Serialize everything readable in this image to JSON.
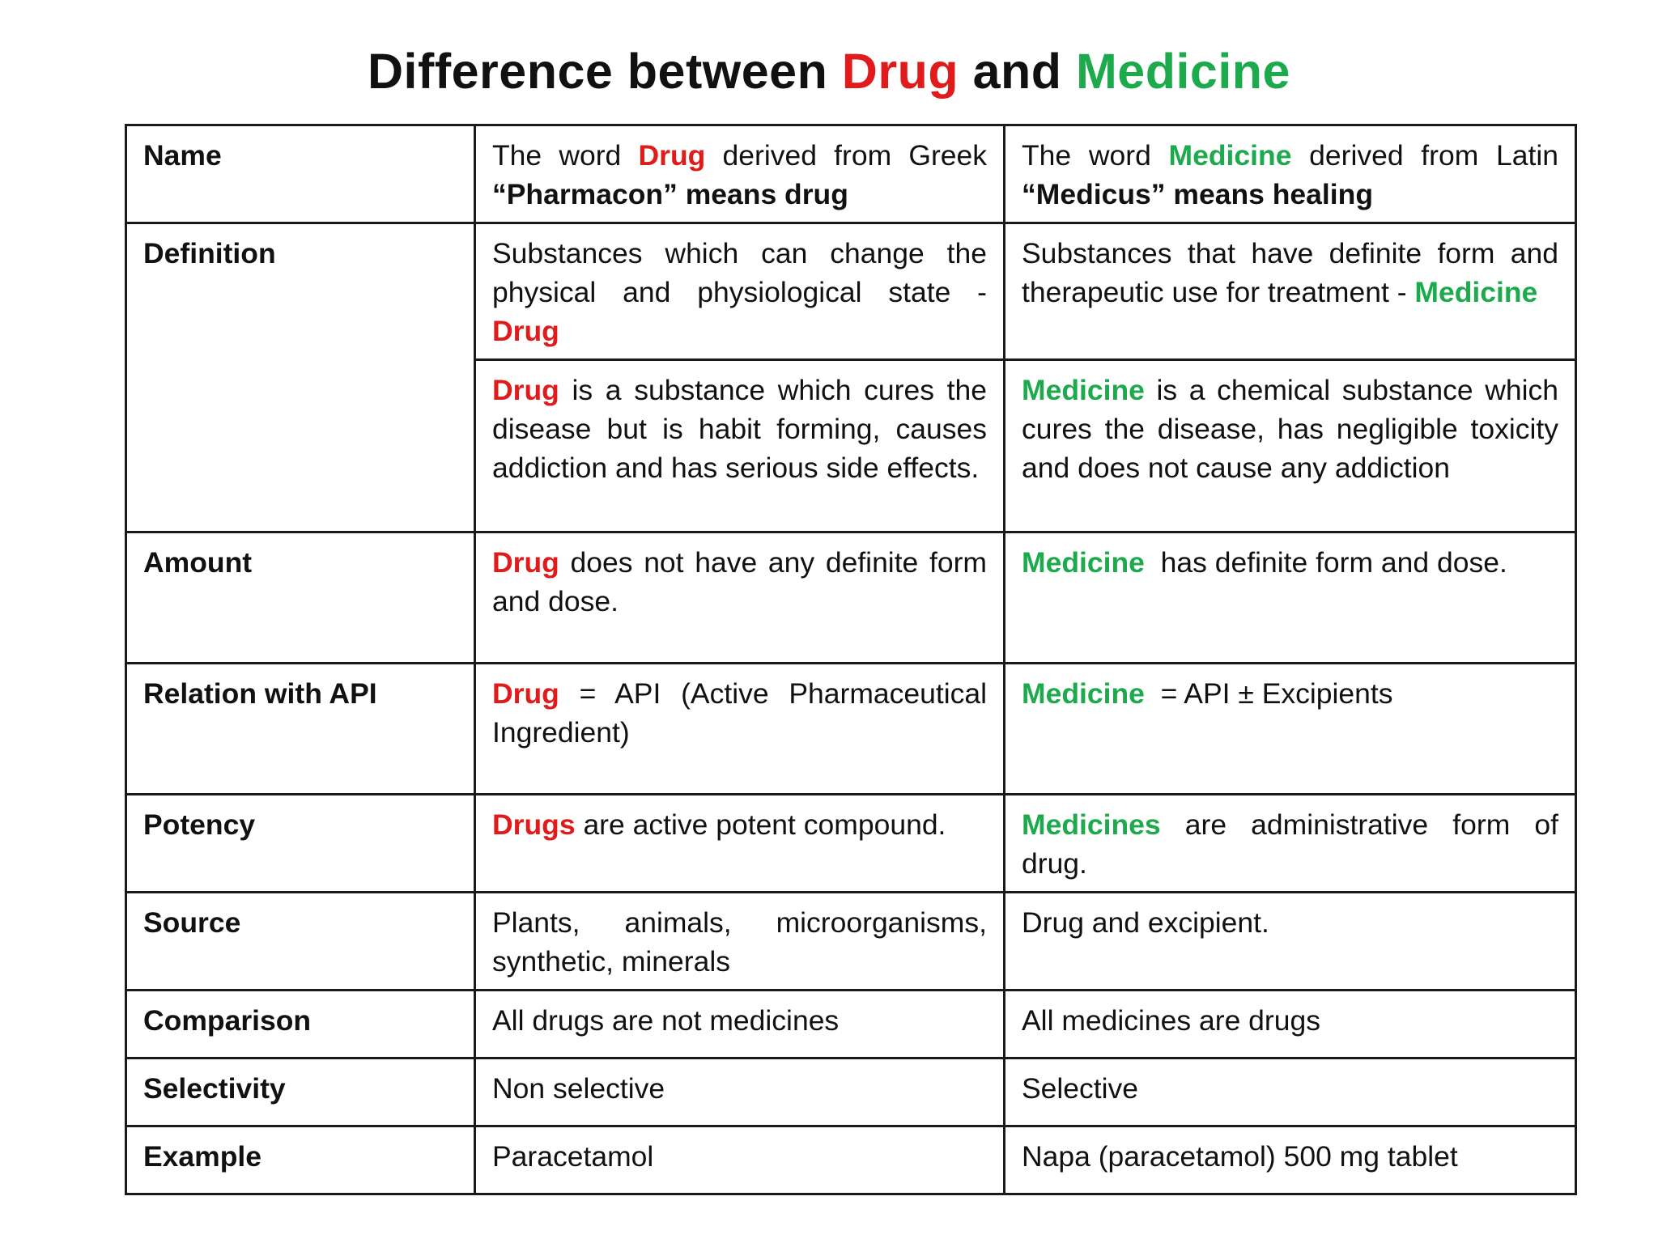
{
  "title": {
    "part1": "Difference between ",
    "drug": "Drug",
    "part2": " and ",
    "medicine": "Medicine"
  },
  "colors": {
    "drug": "#e01b1b",
    "medicine": "#1daa4c"
  },
  "rows": {
    "name": {
      "label": "Name",
      "drug_pre": "The word ",
      "drug_kw": "Drug",
      "drug_post": " derived from Greek ",
      "drug_bold": "“Pharmacon” means drug",
      "med_pre": "The word ",
      "med_kw": "Medicine",
      "med_post": " derived from Latin ",
      "med_bold": "“Medicus” means healing"
    },
    "definition": {
      "label": "Definition",
      "drug1_text": "Substances which can change the physical and physiological state - ",
      "drug1_kw": "Drug",
      "med1_text": "Substances that have definite form and therapeutic use for treatment - ",
      "med1_kw": "Medicine",
      "drug2_kw": "Drug",
      "drug2_text": " is a substance which cures the disease but is habit forming, causes addiction and has serious side effects.",
      "med2_kw": "Medicine",
      "med2_text": " is a chemical substance which cures the disease, has negligible toxicity and does not cause any addiction"
    },
    "amount": {
      "label": "Amount",
      "drug_kw": "Drug",
      "drug_text": " does not have any definite form and dose.",
      "med_kw": "Medicine",
      "med_text": "  has definite form and dose."
    },
    "api": {
      "label": "Relation with API",
      "drug_kw": "Drug",
      "drug_text": "  = API (Active Pharmaceutical Ingredient)",
      "med_kw": "Medicine",
      "med_text": "  = API ± Excipients"
    },
    "potency": {
      "label": "Potency",
      "drug_kw": "Drugs",
      "drug_text": " are active potent compound.",
      "med_kw": "Medicines",
      "med_text": " are administrative form of drug."
    },
    "source": {
      "label": "Source",
      "drug_text": "Plants, animals, microorganisms, synthetic, minerals",
      "med_text": "Drug and excipient."
    },
    "comparison": {
      "label": "Comparison",
      "drug_text": "All drugs are not medicines",
      "med_text": "All medicines are drugs"
    },
    "selectivity": {
      "label": "Selectivity",
      "drug_text": "Non selective",
      "med_text": "Selective"
    },
    "example": {
      "label": "Example",
      "drug_text": "Paracetamol",
      "med_text": "Napa (paracetamol) 500 mg tablet"
    }
  }
}
